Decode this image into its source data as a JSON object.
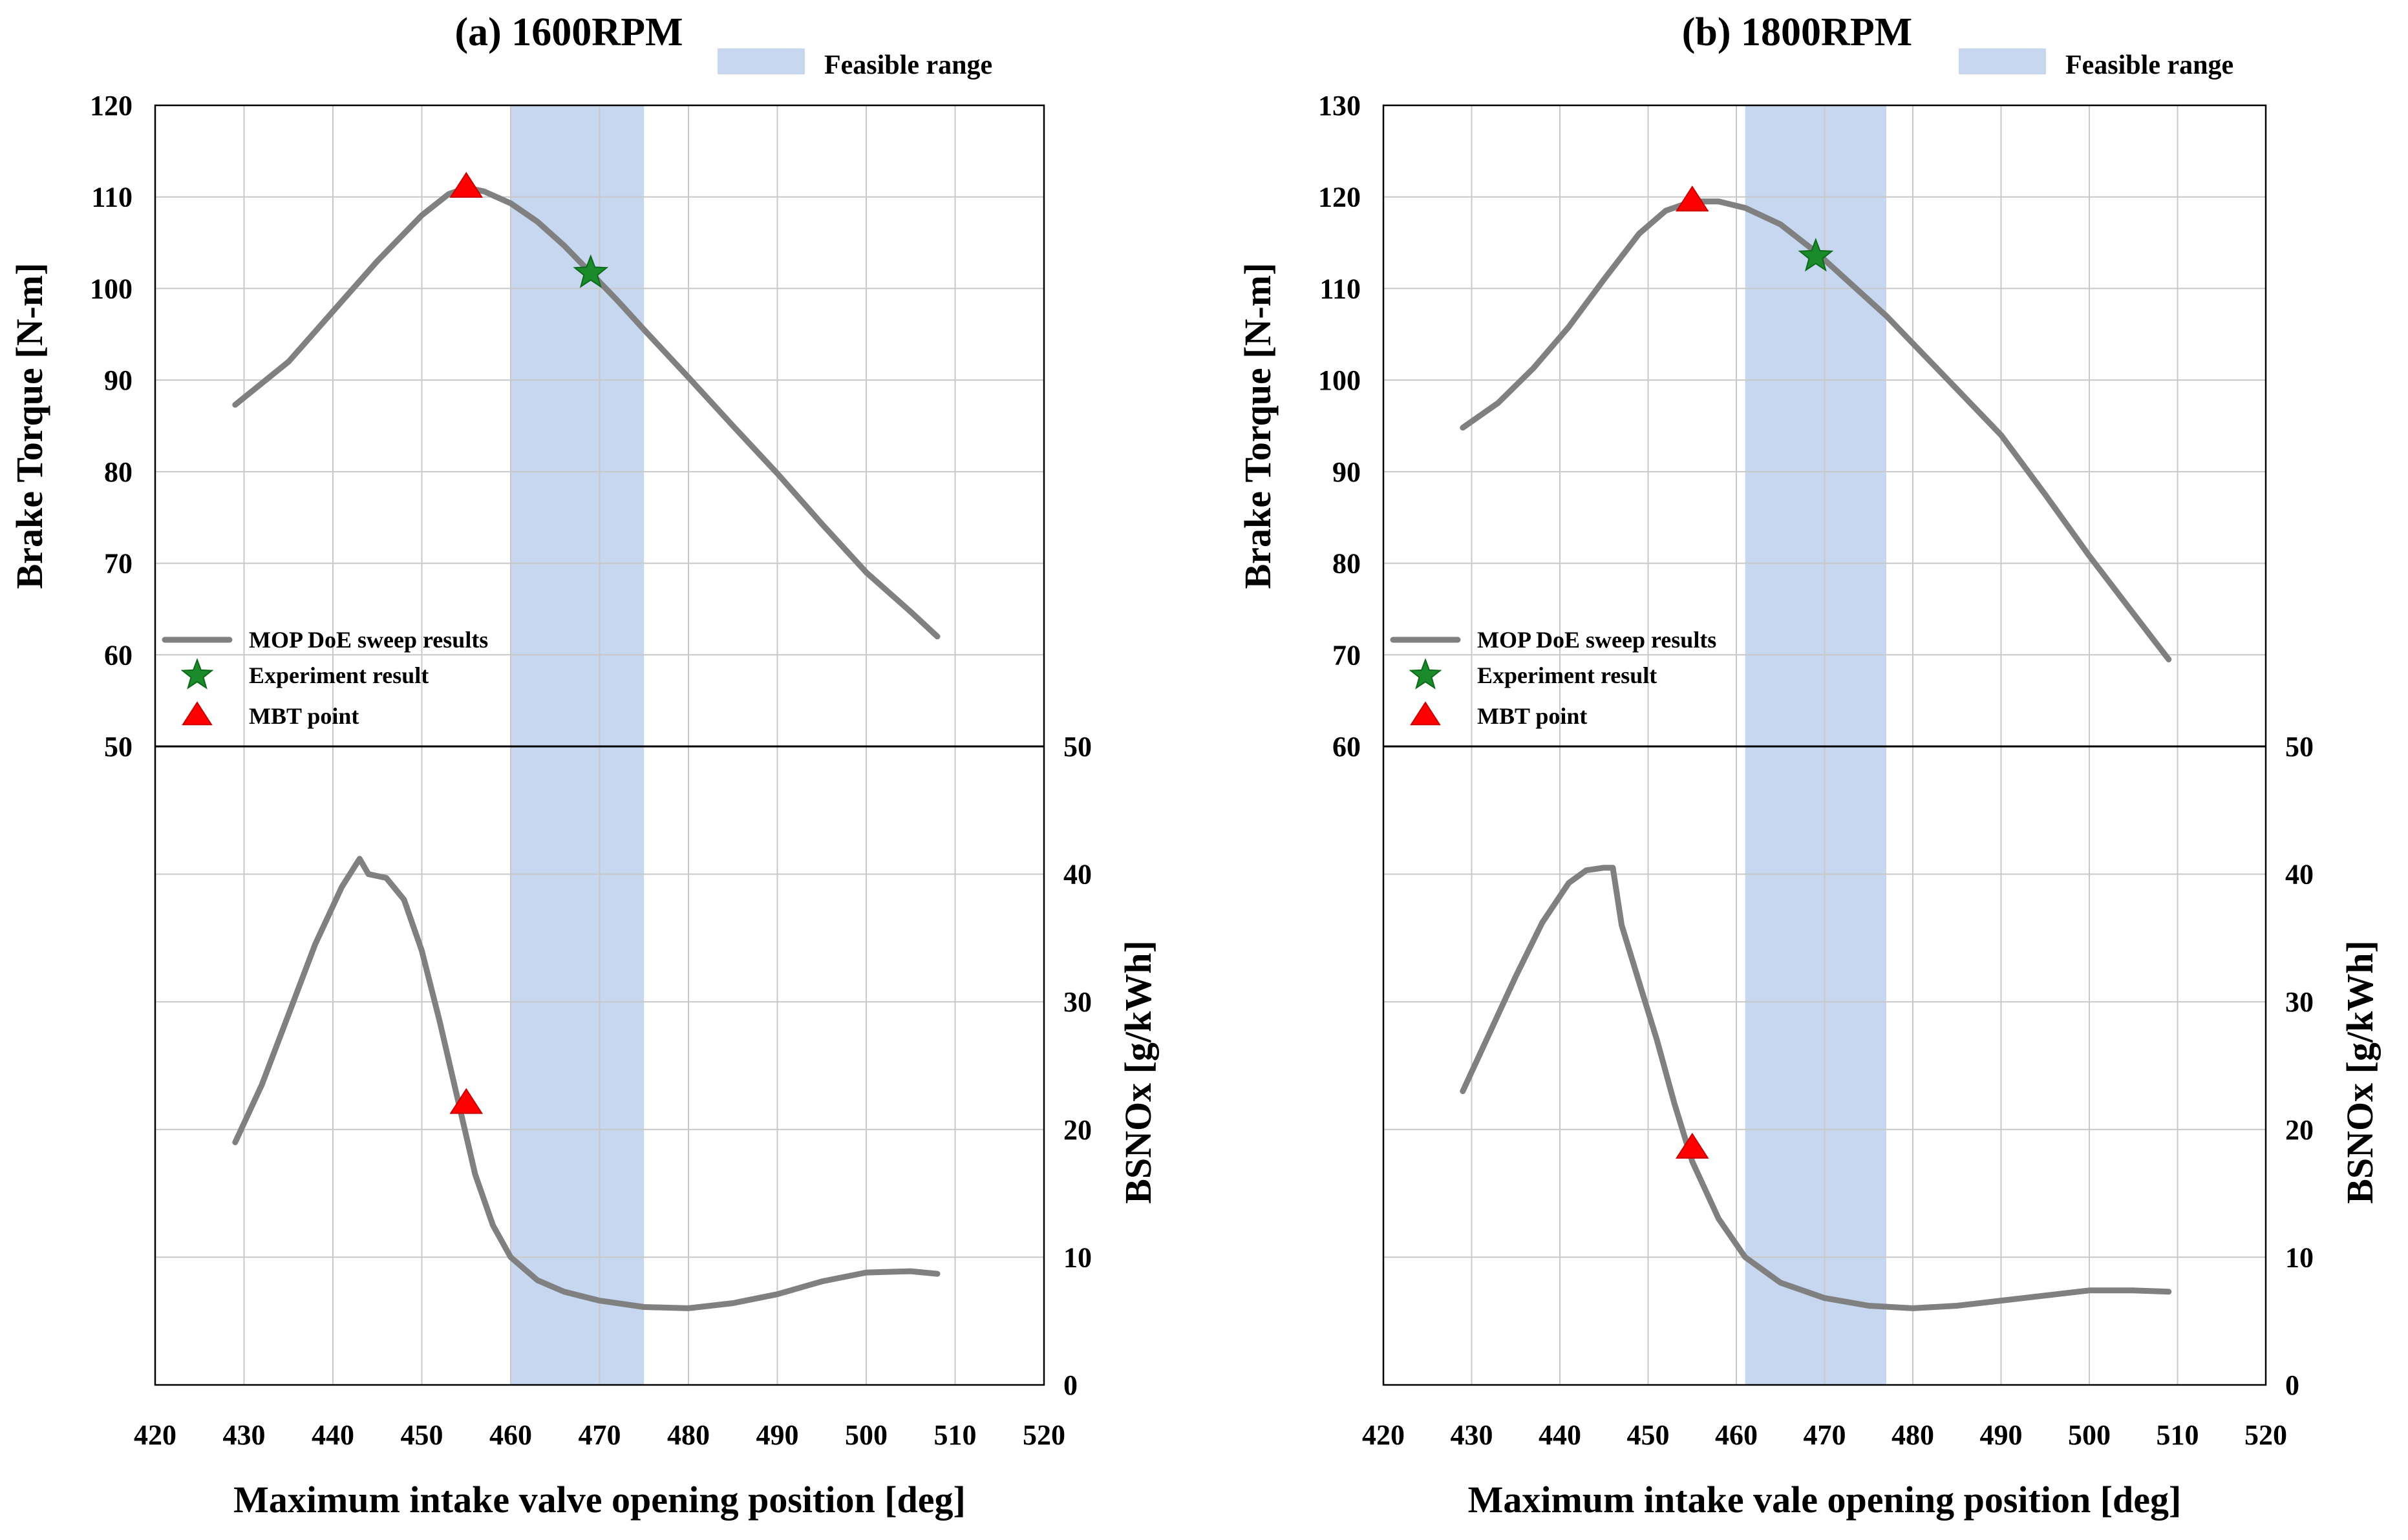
{
  "chart_data": [
    {
      "type": "line",
      "title": "(a) 1600RPM",
      "xlabel": "Maximum intake valve opening  position [deg]",
      "ylabel_top": "Brake Torque [N-m]",
      "ylabel_bottom": "BSNOx [g/kWh]",
      "xlim": [
        420,
        520
      ],
      "xticks": [
        420,
        430,
        440,
        450,
        460,
        470,
        480,
        490,
        500,
        510,
        520
      ],
      "ylim_top": [
        50,
        120
      ],
      "yticks_top": [
        50,
        60,
        70,
        80,
        90,
        100,
        110,
        120
      ],
      "ylim_bottom": [
        0,
        50
      ],
      "yticks_bottom": [
        0,
        10,
        20,
        30,
        40,
        50
      ],
      "grid": true,
      "feasible_range": {
        "label": "Feasible range",
        "x": [
          460,
          475
        ]
      },
      "legend": {
        "placement": "lower-left of top panel",
        "entries": [
          "MOP DoE sweep results",
          "Experiment result",
          "MBT point"
        ]
      },
      "series": [
        {
          "name": "MOP DoE sweep results",
          "panel": "top",
          "x": [
            429,
            435,
            440,
            445,
            450,
            453,
            455,
            457,
            460,
            463,
            466,
            469,
            472,
            475,
            480,
            485,
            490,
            495,
            500,
            505,
            508
          ],
          "values": [
            87.3,
            92,
            97.5,
            103,
            108,
            110.3,
            111,
            110.6,
            109.3,
            107.3,
            104.7,
            101.7,
            98.7,
            95.5,
            90.3,
            85,
            79.8,
            74.3,
            69,
            64.7,
            62
          ]
        },
        {
          "name": "MOP DoE sweep results",
          "panel": "bottom",
          "x": [
            429,
            432,
            435,
            438,
            441,
            443,
            444,
            446,
            448,
            450,
            452,
            454,
            456,
            458,
            460,
            463,
            466,
            470,
            475,
            480,
            485,
            490,
            495,
            500,
            505,
            508
          ],
          "values": [
            19,
            23.5,
            29,
            34.5,
            39,
            41.2,
            40,
            39.7,
            38,
            34,
            28.5,
            22.5,
            16.5,
            12.5,
            10,
            8.2,
            7.3,
            6.6,
            6.1,
            6,
            6.4,
            7.1,
            8.1,
            8.8,
            8.9,
            8.7
          ]
        }
      ],
      "experiment_result": {
        "panel": "top",
        "x": 469,
        "y": 101.7
      },
      "mbt_points": [
        {
          "panel": "top",
          "x": 455,
          "y": 111
        },
        {
          "panel": "bottom",
          "x": 455,
          "y": 22
        }
      ]
    },
    {
      "type": "line",
      "title": "(b) 1800RPM",
      "xlabel": "Maximum intake vale opening position [deg]",
      "ylabel_top": "Brake Torque [N-m]",
      "ylabel_bottom": "BSNOx [g/kWh]",
      "xlim": [
        420,
        520
      ],
      "xticks": [
        420,
        430,
        440,
        450,
        460,
        470,
        480,
        490,
        500,
        510,
        520
      ],
      "ylim_top": [
        60,
        130
      ],
      "yticks_top": [
        60,
        70,
        80,
        90,
        100,
        110,
        120,
        130
      ],
      "ylim_bottom": [
        0,
        50
      ],
      "yticks_bottom": [
        0,
        10,
        20,
        30,
        40,
        50
      ],
      "grid": true,
      "feasible_range": {
        "label": "Feasible range",
        "x": [
          461,
          477
        ]
      },
      "legend": {
        "placement": "lower-left of top panel",
        "entries": [
          "MOP DoE sweep results",
          "Experiment result",
          "MBT point"
        ]
      },
      "series": [
        {
          "name": "MOP DoE sweep results",
          "panel": "top",
          "x": [
            429,
            433,
            437,
            441,
            445,
            449,
            452,
            455,
            458,
            461,
            465,
            469,
            473,
            477,
            481,
            485,
            490,
            495,
            500,
            505,
            509
          ],
          "values": [
            94.8,
            97.5,
            101.3,
            105.8,
            111,
            116,
            118.5,
            119.5,
            119.5,
            118.8,
            117,
            114,
            110.5,
            107,
            103,
            99,
            94,
            87.5,
            80.8,
            74.5,
            69.5
          ]
        },
        {
          "name": "MOP DoE sweep results",
          "panel": "bottom",
          "x": [
            429,
            432,
            435,
            438,
            441,
            443,
            445,
            446,
            447,
            449,
            451,
            453,
            455,
            458,
            461,
            465,
            470,
            475,
            480,
            485,
            490,
            495,
            500,
            505,
            509
          ],
          "values": [
            23,
            27.5,
            32,
            36.2,
            39.3,
            40.3,
            40.5,
            40.5,
            36,
            31.5,
            27,
            22,
            17.5,
            13,
            10,
            8,
            6.8,
            6.2,
            6,
            6.2,
            6.6,
            7,
            7.4,
            7.4,
            7.3
          ]
        }
      ],
      "experiment_result": {
        "panel": "top",
        "x": 469,
        "y": 113.5
      },
      "mbt_points": [
        {
          "panel": "top",
          "x": 455,
          "y": 119.5
        },
        {
          "panel": "bottom",
          "x": 455,
          "y": 18.5
        }
      ]
    }
  ]
}
